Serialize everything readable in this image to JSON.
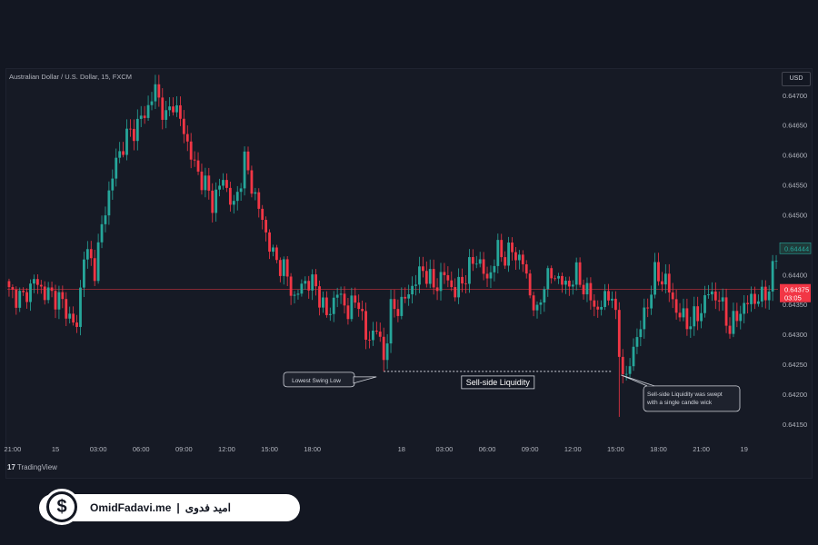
{
  "header": {
    "symbol": "Australian Dollar / U.S. Dollar, 15, FXCM",
    "currency": "USD"
  },
  "footer": {
    "tradingview_logo": "TradingView",
    "tv_mark": "17"
  },
  "brand": {
    "site": "OmidFadavi.me",
    "separator": "|",
    "name_fa": "امید فدوی",
    "icon": "dollar-icon"
  },
  "colors": {
    "up": "#26a69a",
    "down": "#f23645",
    "background": "#161a25",
    "axis_text": "#b2b5be",
    "price_line": "#f23645",
    "last_price_box": "#f23645",
    "liquidity_price_box": "#1f3b3a"
  },
  "chart_data": {
    "type": "candlestick",
    "title": "Australian Dollar / U.S. Dollar, 15, FXCM",
    "ylim": [
      0.6413,
      0.6473
    ],
    "y_ticks": [
      0.647,
      0.6465,
      0.646,
      0.6455,
      0.645,
      0.6445,
      0.644,
      0.6435,
      0.643,
      0.6425,
      0.642,
      0.6415
    ],
    "y_tick_labels": [
      "0.64700",
      "0.64650",
      "0.64600",
      "0.64550",
      "0.64500",
      "0.64450",
      "0.64400",
      "0.64350",
      "0.64300",
      "0.64250",
      "0.64200",
      "0.64150"
    ],
    "x_ticks": [
      {
        "label": "21:00",
        "index": 1
      },
      {
        "label": "15",
        "index": 13
      },
      {
        "label": "03:00",
        "index": 25
      },
      {
        "label": "06:00",
        "index": 37
      },
      {
        "label": "09:00",
        "index": 49
      },
      {
        "label": "12:00",
        "index": 61
      },
      {
        "label": "15:00",
        "index": 73
      },
      {
        "label": "18:00",
        "index": 85
      },
      {
        "label": "18",
        "index": 110
      },
      {
        "label": "03:00",
        "index": 122
      },
      {
        "label": "06:00",
        "index": 134
      },
      {
        "label": "09:00",
        "index": 146
      },
      {
        "label": "12:00",
        "index": 158
      },
      {
        "label": "15:00",
        "index": 170
      },
      {
        "label": "18:00",
        "index": 182
      },
      {
        "label": "21:00",
        "index": 194
      },
      {
        "label": "19",
        "index": 206
      }
    ],
    "last_price": {
      "value": 0.64375,
      "label": "0.64375",
      "countdown": "03:05"
    },
    "swing_high_marker": {
      "value": 0.64444,
      "label": "0.64444",
      "partial_label": "0.64450"
    },
    "annotations": {
      "lowest_swing_low": "Lowest Swing Low",
      "sell_side_liquidity": "Sell-side Liquidity",
      "sweep_note_line1": "Sell-side Liquidity was swept",
      "sweep_note_line2": "with a single candle wick"
    },
    "liquidity_level": {
      "value": 0.64238,
      "from_index": 105,
      "to_index": 169
    },
    "price_waypoints": [
      [
        0,
        0.6437
      ],
      [
        4,
        0.6436
      ],
      [
        7,
        0.6439
      ],
      [
        10,
        0.6437
      ],
      [
        14,
        0.6436
      ],
      [
        16,
        0.6434
      ],
      [
        19,
        0.6431
      ],
      [
        21,
        0.6444
      ],
      [
        24,
        0.6441
      ],
      [
        27,
        0.6451
      ],
      [
        30,
        0.6459
      ],
      [
        33,
        0.6463
      ],
      [
        36,
        0.6465
      ],
      [
        39,
        0.6468
      ],
      [
        41,
        0.6471
      ],
      [
        44,
        0.6466
      ],
      [
        46,
        0.6469
      ],
      [
        49,
        0.6464
      ],
      [
        52,
        0.6458
      ],
      [
        55,
        0.6455
      ],
      [
        57,
        0.6452
      ],
      [
        60,
        0.6456
      ],
      [
        63,
        0.6451
      ],
      [
        66,
        0.6459
      ],
      [
        68,
        0.6455
      ],
      [
        71,
        0.6449
      ],
      [
        74,
        0.6443
      ],
      [
        77,
        0.6441
      ],
      [
        80,
        0.6436
      ],
      [
        83,
        0.6439
      ],
      [
        86,
        0.6438
      ],
      [
        89,
        0.6433
      ],
      [
        92,
        0.6437
      ],
      [
        95,
        0.6434
      ],
      [
        98,
        0.6436
      ],
      [
        100,
        0.6429
      ],
      [
        103,
        0.6431
      ],
      [
        105,
        0.6426
      ],
      [
        107,
        0.6434
      ],
      [
        110,
        0.6435
      ],
      [
        113,
        0.6438
      ],
      [
        116,
        0.6441
      ],
      [
        119,
        0.6438
      ],
      [
        122,
        0.644
      ],
      [
        125,
        0.6437
      ],
      [
        128,
        0.644
      ],
      [
        131,
        0.6443
      ],
      [
        134,
        0.6439
      ],
      [
        137,
        0.6444
      ],
      [
        139,
        0.6443
      ],
      [
        141,
        0.6444
      ],
      [
        144,
        0.6442
      ],
      [
        146,
        0.6437
      ],
      [
        148,
        0.6433
      ],
      [
        150,
        0.6439
      ],
      [
        153,
        0.644
      ],
      [
        156,
        0.6438
      ],
      [
        159,
        0.644
      ],
      [
        162,
        0.6437
      ],
      [
        165,
        0.6434
      ],
      [
        167,
        0.6436
      ],
      [
        169,
        0.6437
      ],
      [
        171,
        0.6427
      ],
      [
        173,
        0.6422
      ],
      [
        175,
        0.6428
      ],
      [
        178,
        0.6433
      ],
      [
        181,
        0.644
      ],
      [
        184,
        0.6439
      ],
      [
        187,
        0.6434
      ],
      [
        190,
        0.6432
      ],
      [
        193,
        0.6433
      ],
      [
        196,
        0.6437
      ],
      [
        199,
        0.6436
      ],
      [
        202,
        0.6431
      ],
      [
        205,
        0.6434
      ],
      [
        208,
        0.6436
      ],
      [
        211,
        0.6436
      ],
      [
        213,
        0.6438
      ],
      [
        215,
        0.6443
      ]
    ]
  }
}
